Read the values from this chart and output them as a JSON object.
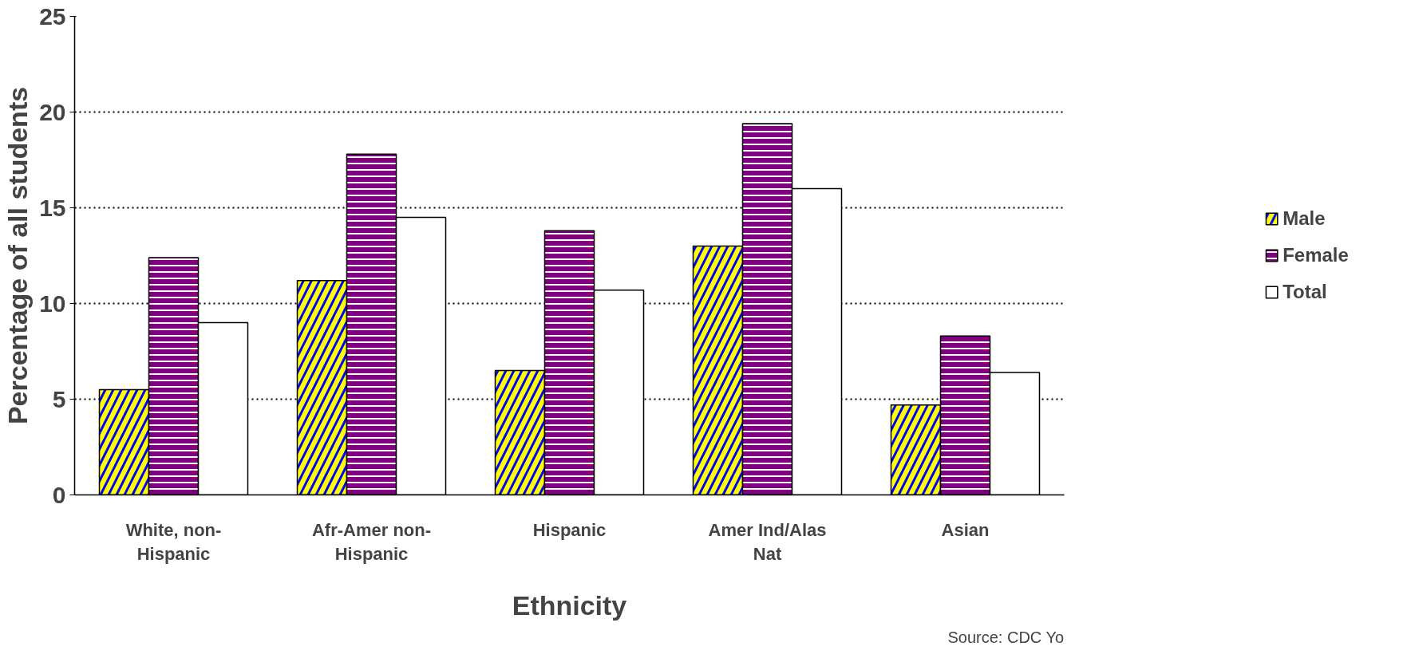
{
  "chart_data": {
    "type": "bar",
    "xlabel": "Ethnicity",
    "ylabel": "Percentage of all students",
    "categories": [
      "White, non-Hispanic",
      "Afr-Amer non-Hispanic",
      "Hispanic",
      "Amer Ind/Alas Nat",
      "Asian"
    ],
    "series": [
      {
        "name": "Male",
        "color": "#ffff00",
        "values": [
          5.5,
          11.2,
          6.5,
          13.0,
          4.7
        ]
      },
      {
        "name": "Female",
        "color": "#800080",
        "values": [
          12.4,
          17.8,
          13.8,
          19.4,
          8.3
        ]
      },
      {
        "name": "Total",
        "color": "#ffffff",
        "values": [
          9.0,
          14.5,
          10.7,
          16.0,
          6.4
        ]
      }
    ],
    "ylim": [
      0,
      25
    ],
    "yticks": [
      0,
      5,
      10,
      15,
      20,
      25
    ],
    "grid": "y",
    "legend": "right",
    "annotations": [
      "Source: CDC Yo"
    ]
  }
}
